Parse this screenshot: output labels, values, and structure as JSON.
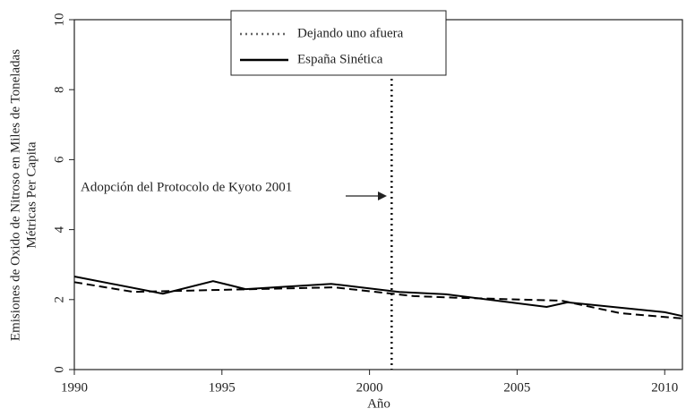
{
  "chart_data": {
    "type": "line",
    "xlabel": "Año",
    "ylabel": [
      "Emisiones de Oxido de Nitroso en Miles de Toneladas",
      "Métricas Per Capita"
    ],
    "xlim": [
      1990,
      2010.6
    ],
    "ylim": [
      0,
      10
    ],
    "xticks": [
      1990,
      1995,
      2000,
      2005,
      2010
    ],
    "yticks": [
      0,
      2,
      4,
      6,
      8,
      10
    ],
    "series": [
      {
        "color": "#000000",
        "style": "solid",
        "x": [
          1990,
          1993,
          1994.7,
          1995.8,
          1998.7,
          2001,
          2002.6,
          2006,
          2006.7,
          2010,
          2010.6
        ],
        "values": [
          2.66,
          2.17,
          2.53,
          2.3,
          2.45,
          2.22,
          2.15,
          1.79,
          1.92,
          1.64,
          1.53
        ]
      },
      {
        "color": "#000000",
        "style": "dashed",
        "x": [
          1990,
          1992,
          1995,
          1998.8,
          2001.5,
          2003,
          2006.5,
          2008.5,
          2010.6
        ],
        "values": [
          2.5,
          2.22,
          2.28,
          2.35,
          2.1,
          2.05,
          1.97,
          1.61,
          1.46
        ]
      }
    ],
    "event_x": 2000.75,
    "legend": [
      {
        "label": "Dejando uno afuera",
        "style": "dotted",
        "color": "#666666"
      },
      {
        "label": "España Sinética",
        "style": "solid",
        "color": "#000000"
      }
    ],
    "annotation": "Adopción del Protocolo de Kyoto 2001"
  }
}
